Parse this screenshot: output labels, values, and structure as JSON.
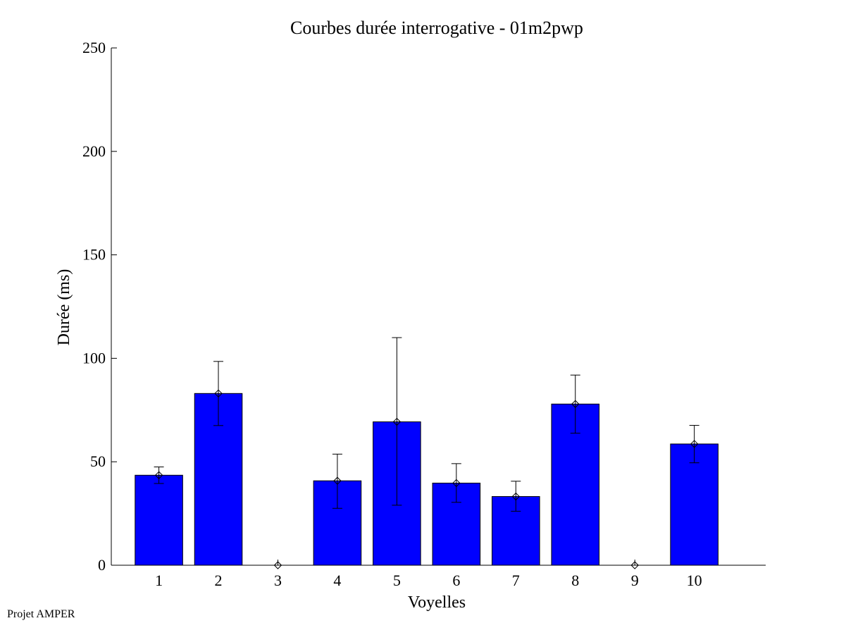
{
  "chart_data": {
    "type": "bar",
    "title": "Courbes durée interrogative - 01m2pwp",
    "xlabel": "Voyelles",
    "ylabel": "Durée (ms)",
    "categories": [
      "1",
      "2",
      "3",
      "4",
      "5",
      "6",
      "7",
      "8",
      "9",
      "10"
    ],
    "values": [
      43.5,
      83,
      0,
      40.8,
      69.3,
      39.7,
      33.2,
      77.9,
      0,
      58.6
    ],
    "error_low": [
      39.5,
      67.5,
      0,
      27.5,
      29,
      30.4,
      26.1,
      63.8,
      0,
      49.5
    ],
    "error_high": [
      47.5,
      98.5,
      0,
      53.7,
      110,
      49.1,
      40.6,
      91.9,
      0,
      67.6
    ],
    "yticks": [
      0,
      50,
      100,
      150,
      200,
      250
    ],
    "ylim": [
      0,
      250
    ],
    "xlim": [
      0.2,
      11.2
    ],
    "bar_color": "#0000ff",
    "grid": false,
    "marker": "diamond"
  },
  "footer": {
    "text": "Projet AMPER"
  }
}
